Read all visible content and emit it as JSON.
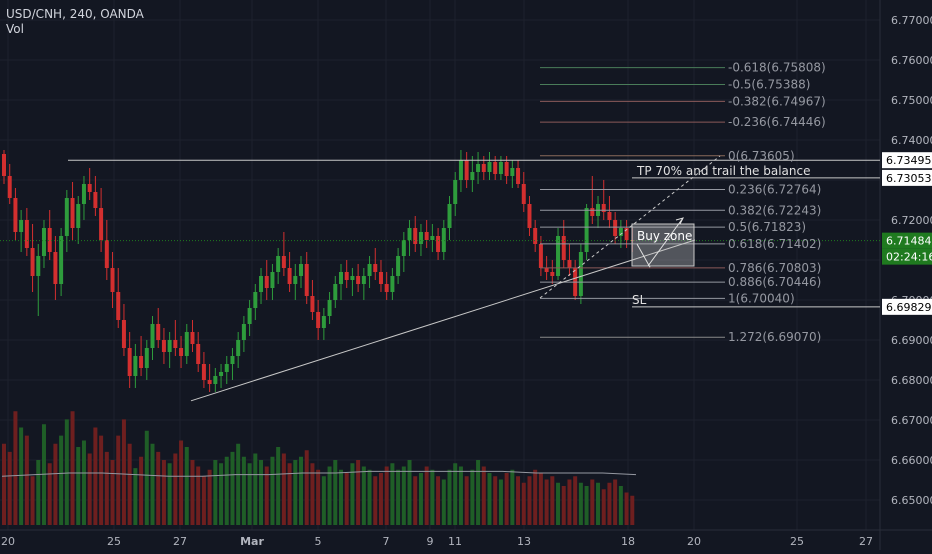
{
  "header": {
    "symbol_line": "USD/CNH, 240, OANDA",
    "volume_label": "Vol"
  },
  "colors": {
    "background": "#131722",
    "grid": "#1e222d",
    "up": "#26a69a",
    "up_fill": "#2e9c3c",
    "down": "#d32f2f",
    "text": "#b2b5be",
    "fib": "#9598a1",
    "axis_text": "#b2b5be",
    "last_price_bg": "#1f7a1f",
    "marker_bg": "#ffffff",
    "marker_text": "#000000"
  },
  "chart_data": {
    "type": "candlestick",
    "title": "USD/CNH, 240, OANDA",
    "ylim": [
      6.6425,
      6.7725
    ],
    "y_ticks": [
      "6.77000",
      "6.76000",
      "6.75000",
      "6.74000",
      "6.73000",
      "6.72000",
      "6.71000",
      "6.70000",
      "6.69000",
      "6.68000",
      "6.67000",
      "6.66000",
      "6.65000"
    ],
    "x_ticks": [
      "20",
      "25",
      "27",
      "Mar",
      "5",
      "7",
      "9",
      "11",
      "13",
      "18",
      "20",
      "25",
      "27"
    ],
    "price_markers": [
      {
        "label": "6.73495",
        "value": 6.73495,
        "style": "white"
      },
      {
        "label": "6.73053",
        "value": 6.73053,
        "style": "white"
      },
      {
        "label": "6.71484",
        "value": 6.71484,
        "style": "green"
      },
      {
        "label": "02:24:16",
        "value": 6.71484,
        "style": "green-sub"
      },
      {
        "label": "6.69829",
        "value": 6.69829,
        "style": "white"
      }
    ],
    "fib_levels": [
      {
        "label": "-0.618(6.75808)",
        "value": 6.75808
      },
      {
        "label": "-0.5(6.75388)",
        "value": 6.75388
      },
      {
        "label": "-0.382(6.74967)",
        "value": 6.74967
      },
      {
        "label": "-0.236(6.74446)",
        "value": 6.74446
      },
      {
        "label": "0(6.73605)",
        "value": 6.73605
      },
      {
        "label": "0.236(6.72764)",
        "value": 6.72764
      },
      {
        "label": "0.382(6.72243)",
        "value": 6.72243
      },
      {
        "label": "0.5(6.71823)",
        "value": 6.71823
      },
      {
        "label": "0.618(6.71402)",
        "value": 6.71402
      },
      {
        "label": "0.786(6.70803)",
        "value": 6.70803
      },
      {
        "label": "0.886(6.70446)",
        "value": 6.70446
      },
      {
        "label": "1(6.70040)",
        "value": 6.7004
      },
      {
        "label": "1.272(6.69070)",
        "value": 6.6907
      }
    ],
    "annotations": [
      {
        "label": "TP 70% and trail the balance",
        "value": 6.73053
      },
      {
        "label": "Buy zone",
        "value": 6.713
      },
      {
        "label": "SL",
        "value": 6.69829
      }
    ],
    "resistance_level": 6.73495,
    "current_price": 6.71484,
    "trendline": [
      {
        "date": "Feb 27",
        "price": 6.6748
      },
      {
        "date": "Mar 18",
        "price": 6.7148
      }
    ],
    "candles": [
      [
        6.7365,
        6.7375,
        6.729,
        6.731
      ],
      [
        6.731,
        6.734,
        6.724,
        6.7255
      ],
      [
        6.7255,
        6.728,
        6.715,
        6.717
      ],
      [
        6.717,
        6.7225,
        6.712,
        6.72
      ],
      [
        6.72,
        6.723,
        6.711,
        6.713
      ],
      [
        6.713,
        6.719,
        6.702,
        6.706
      ],
      [
        6.706,
        6.714,
        6.696,
        6.711
      ],
      [
        6.711,
        6.72,
        6.708,
        6.718
      ],
      [
        6.718,
        6.7225,
        6.71,
        6.712
      ],
      [
        6.712,
        6.716,
        6.7,
        6.704
      ],
      [
        6.704,
        6.718,
        6.701,
        6.716
      ],
      [
        6.716,
        6.7275,
        6.712,
        6.7255
      ],
      [
        6.7255,
        6.7295,
        6.715,
        6.718
      ],
      [
        6.718,
        6.726,
        6.714,
        6.724
      ],
      [
        6.724,
        6.731,
        6.72,
        6.729
      ],
      [
        6.729,
        6.733,
        6.725,
        6.727
      ],
      [
        6.727,
        6.731,
        6.721,
        6.723
      ],
      [
        6.723,
        6.728,
        6.712,
        6.715
      ],
      [
        6.715,
        6.72,
        6.705,
        6.708
      ],
      [
        6.708,
        6.712,
        6.698,
        6.702
      ],
      [
        6.702,
        6.708,
        6.693,
        6.695
      ],
      [
        6.695,
        6.699,
        6.686,
        6.688
      ],
      [
        6.688,
        6.692,
        6.678,
        6.681
      ],
      [
        6.681,
        6.689,
        6.678,
        6.686
      ],
      [
        6.686,
        6.691,
        6.681,
        6.683
      ],
      [
        6.683,
        6.69,
        6.68,
        6.688
      ],
      [
        6.688,
        6.696,
        6.685,
        6.694
      ],
      [
        6.694,
        6.698,
        6.688,
        6.69
      ],
      [
        6.69,
        6.693,
        6.684,
        6.687
      ],
      [
        6.687,
        6.692,
        6.683,
        6.69
      ],
      [
        6.69,
        6.695,
        6.686,
        6.688
      ],
      [
        6.688,
        6.691,
        6.683,
        6.686
      ],
      [
        6.686,
        6.694,
        6.684,
        6.692
      ],
      [
        6.692,
        6.695,
        6.687,
        6.689
      ],
      [
        6.689,
        6.692,
        6.682,
        6.684
      ],
      [
        6.684,
        6.687,
        6.678,
        6.68
      ],
      [
        6.68,
        6.684,
        6.677,
        6.679
      ],
      [
        6.679,
        6.683,
        6.677,
        6.681
      ],
      [
        6.681,
        6.684,
        6.678,
        6.682
      ],
      [
        6.682,
        6.686,
        6.679,
        6.684
      ],
      [
        6.684,
        6.688,
        6.68,
        6.686
      ],
      [
        6.686,
        6.692,
        6.683,
        6.69
      ],
      [
        6.69,
        6.696,
        6.687,
        6.694
      ],
      [
        6.694,
        6.7,
        6.691,
        6.698
      ],
      [
        6.698,
        6.704,
        6.695,
        6.702
      ],
      [
        6.702,
        6.708,
        6.699,
        6.706
      ],
      [
        6.706,
        6.71,
        6.7,
        6.703
      ],
      [
        6.703,
        6.709,
        6.7,
        6.707
      ],
      [
        6.707,
        6.713,
        6.704,
        6.711
      ],
      [
        6.711,
        6.717,
        6.706,
        6.708
      ],
      [
        6.708,
        6.712,
        6.702,
        6.704
      ],
      [
        6.704,
        6.709,
        6.7,
        6.706
      ],
      [
        6.706,
        6.711,
        6.703,
        6.709
      ],
      [
        6.709,
        6.712,
        6.699,
        6.701
      ],
      [
        6.701,
        6.705,
        6.695,
        6.697
      ],
      [
        6.697,
        6.7,
        6.69,
        6.693
      ],
      [
        6.693,
        6.698,
        6.69,
        6.696
      ],
      [
        6.696,
        6.702,
        6.694,
        6.7
      ],
      [
        6.7,
        6.706,
        6.698,
        6.704
      ],
      [
        6.704,
        6.709,
        6.7,
        6.707
      ],
      [
        6.707,
        6.71,
        6.703,
        6.705
      ],
      [
        6.705,
        6.708,
        6.701,
        6.706
      ],
      [
        6.706,
        6.709,
        6.702,
        6.704
      ],
      [
        6.704,
        6.708,
        6.7,
        6.706
      ],
      [
        6.706,
        6.711,
        6.703,
        6.709
      ],
      [
        6.709,
        6.713,
        6.705,
        6.707
      ],
      [
        6.707,
        6.71,
        6.702,
        6.704
      ],
      [
        6.704,
        6.707,
        6.7,
        6.702
      ],
      [
        6.702,
        6.708,
        6.7,
        6.706
      ],
      [
        6.706,
        6.713,
        6.704,
        6.711
      ],
      [
        6.711,
        6.717,
        6.707,
        6.715
      ],
      [
        6.715,
        6.72,
        6.711,
        6.718
      ],
      [
        6.718,
        6.721,
        6.712,
        6.714
      ],
      [
        6.714,
        6.719,
        6.711,
        6.717
      ],
      [
        6.717,
        6.72,
        6.713,
        6.715
      ],
      [
        6.715,
        6.719,
        6.712,
        6.716
      ],
      [
        6.716,
        6.718,
        6.71,
        6.712
      ],
      [
        6.712,
        6.72,
        6.71,
        6.718
      ],
      [
        6.718,
        6.726,
        6.715,
        6.724
      ],
      [
        6.724,
        6.732,
        6.721,
        6.73
      ],
      [
        6.73,
        6.7375,
        6.727,
        6.735
      ],
      [
        6.735,
        6.737,
        6.728,
        6.73
      ],
      [
        6.73,
        6.736,
        6.727,
        6.732
      ],
      [
        6.732,
        6.737,
        6.729,
        6.734
      ],
      [
        6.734,
        6.736,
        6.73,
        6.732
      ],
      [
        6.732,
        6.737,
        6.73,
        6.7345
      ],
      [
        6.7345,
        6.736,
        6.73,
        6.7315
      ],
      [
        6.7315,
        6.736,
        6.73,
        6.7345
      ],
      [
        6.7345,
        6.736,
        6.729,
        6.731
      ],
      [
        6.731,
        6.735,
        6.728,
        6.733
      ],
      [
        6.733,
        6.735,
        6.728,
        6.729
      ],
      [
        6.729,
        6.732,
        6.722,
        6.724
      ],
      [
        6.724,
        6.726,
        6.716,
        6.718
      ],
      [
        6.718,
        6.72,
        6.712,
        6.714
      ],
      [
        6.714,
        6.716,
        6.706,
        6.708
      ],
      [
        6.708,
        6.711,
        6.705,
        6.707
      ],
      [
        6.707,
        6.71,
        6.704,
        6.706
      ],
      [
        6.706,
        6.718,
        6.705,
        6.716
      ],
      [
        6.716,
        6.72,
        6.708,
        6.71
      ],
      [
        6.71,
        6.714,
        6.706,
        6.708
      ],
      [
        6.708,
        6.71,
        6.7,
        6.701
      ],
      [
        6.701,
        6.714,
        6.699,
        6.712
      ],
      [
        6.712,
        6.724,
        6.71,
        6.723
      ],
      [
        6.723,
        6.731,
        6.719,
        6.721
      ],
      [
        6.721,
        6.726,
        6.718,
        6.724
      ],
      [
        6.724,
        6.73,
        6.72,
        6.722
      ],
      [
        6.722,
        6.726,
        6.718,
        6.72
      ],
      [
        6.72,
        6.722,
        6.714,
        6.716
      ],
      [
        6.716,
        6.72,
        6.713,
        6.718
      ],
      [
        6.718,
        6.72,
        6.713,
        6.715
      ],
      [
        6.715,
        6.718,
        6.712,
        6.7148
      ]
    ],
    "volumes": [
      50,
      45,
      70,
      60,
      55,
      30,
      40,
      62,
      38,
      50,
      55,
      65,
      70,
      48,
      52,
      44,
      60,
      55,
      45,
      40,
      55,
      65,
      50,
      35,
      42,
      58,
      50,
      45,
      40,
      38,
      44,
      52,
      48,
      40,
      36,
      30,
      34,
      40,
      38,
      42,
      45,
      50,
      42,
      38,
      44,
      40,
      36,
      42,
      48,
      44,
      38,
      40,
      42,
      46,
      38,
      34,
      30,
      36,
      40,
      34,
      32,
      38,
      40,
      36,
      34,
      30,
      32,
      36,
      38,
      34,
      36,
      40,
      30,
      32,
      36,
      34,
      30,
      28,
      34,
      38,
      36,
      30,
      34,
      40,
      36,
      32,
      30,
      28,
      32,
      34,
      30,
      26,
      30,
      34,
      32,
      28,
      30,
      26,
      24,
      28,
      30,
      26,
      24,
      28,
      26,
      22,
      26,
      28,
      24,
      20,
      18,
      22
    ],
    "volume_ma": [
      30,
      31,
      32,
      32,
      31,
      30,
      30,
      31,
      31,
      32,
      32,
      33,
      33,
      33,
      33,
      33,
      32,
      32,
      32,
      31
    ]
  }
}
